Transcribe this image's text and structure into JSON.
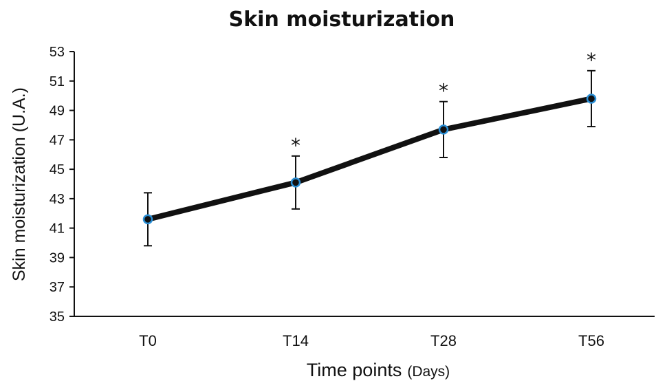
{
  "chart_data": {
    "type": "line",
    "title": "Skin moisturization",
    "ylabel": "Skin moisturization (U.A.)",
    "xlabel": "Time points",
    "xlabel_unit": "(Days)",
    "categories": [
      "T0",
      "T14",
      "T28",
      "T56"
    ],
    "series": [
      {
        "values": [
          41.6,
          44.1,
          47.7,
          49.8
        ],
        "error": [
          1.8,
          1.8,
          1.9,
          1.9
        ],
        "significance": [
          "",
          "*",
          "*",
          "*"
        ]
      }
    ],
    "ylim": [
      35,
      53
    ],
    "yticks": [
      35,
      37,
      39,
      41,
      43,
      45,
      47,
      49,
      51,
      53
    ],
    "grid": false,
    "legend": "none",
    "colors": {
      "line": "#111111",
      "marker_fill": "#111111",
      "marker_edge": "#2a8fd6",
      "axis": "#111111"
    }
  }
}
